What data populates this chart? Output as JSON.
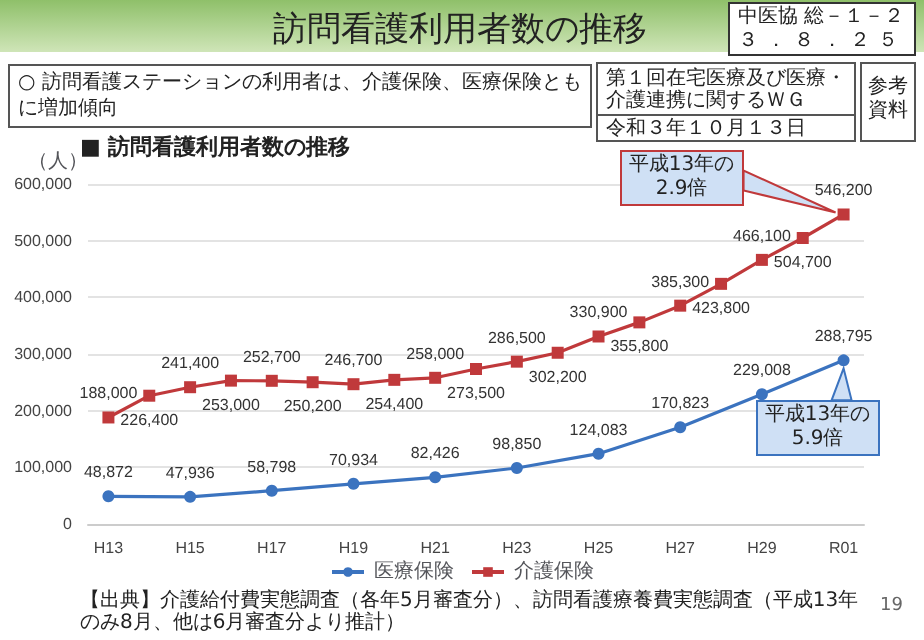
{
  "chart_data": {
    "type": "line",
    "title": "訪問看護利用者数の推移",
    "subtitle": "○ 訪問看護ステーションの利用者は、介護保険、医療保険ともに増加傾向",
    "ylabel": "（人）",
    "categories": [
      "H13",
      null,
      "H15",
      null,
      "H17",
      null,
      "H19",
      null,
      "H21",
      null,
      "H23",
      null,
      "H25",
      null,
      "H27",
      null,
      "H29",
      null,
      "R01"
    ],
    "series": [
      {
        "name": "医療保険",
        "color": "#3b73bf",
        "marker": "circle",
        "values": [
          48872,
          null,
          47936,
          null,
          58798,
          null,
          70934,
          null,
          82426,
          null,
          98850,
          null,
          124083,
          null,
          170823,
          null,
          229008,
          null,
          288795
        ],
        "value_labels": [
          "48,872",
          null,
          "47,936",
          null,
          "58,798",
          null,
          "70,934",
          null,
          "82,426",
          null,
          "98,850",
          null,
          "124,083",
          null,
          "170,823",
          null,
          "229,008",
          null,
          "288,795"
        ]
      },
      {
        "name": "介護保険",
        "color": "#c0393b",
        "marker": "square",
        "values": [
          188000,
          226400,
          241400,
          253000,
          252700,
          250200,
          246700,
          254400,
          258000,
          273500,
          286500,
          302200,
          330900,
          355800,
          385300,
          423800,
          466100,
          504700,
          546200
        ],
        "value_labels": [
          "188,000",
          "226,400",
          "241,400",
          "253,000",
          "252,700",
          "250,200",
          "246,700",
          "254,400",
          "258,000",
          "273,500",
          "286,500",
          "302,200",
          "330,900",
          "355,800",
          "385,300",
          "423,800",
          "466,100",
          "504,700",
          "546,200"
        ]
      }
    ],
    "ylim": [
      0,
      600000
    ],
    "yticks": [
      0,
      {
        "value": 100000,
        "label": "100,000"
      },
      {
        "value": 200000,
        "label": "200,000"
      },
      {
        "value": 300000,
        "label": "300,000"
      },
      {
        "value": 400000,
        "label": "400,000"
      },
      {
        "value": 500000,
        "label": "500,000"
      },
      {
        "value": 600000,
        "label": "600,000"
      }
    ],
    "grid": "y",
    "legend": "bottom",
    "annotations": [
      "■ 訪問看護利用者数の推移",
      "中医協 総－１－２",
      "３．８．２５",
      "第１回在宅医療及び医療・介護連携に関するＷＧ",
      "令和３年１０月１３日",
      "参考資料",
      "【出典】介護給付費実態調査（各年5月審査分）、訪問看護療養費実態調査（平成13年のみ8月、他は6月審査分より推計）",
      "19",
      {
        "text": "平成13年の\n2.9倍",
        "x": "R01",
        "y": 546200
      },
      {
        "text": "平成13年の\n5.9倍",
        "x": "R01",
        "y": 288795
      }
    ]
  }
}
